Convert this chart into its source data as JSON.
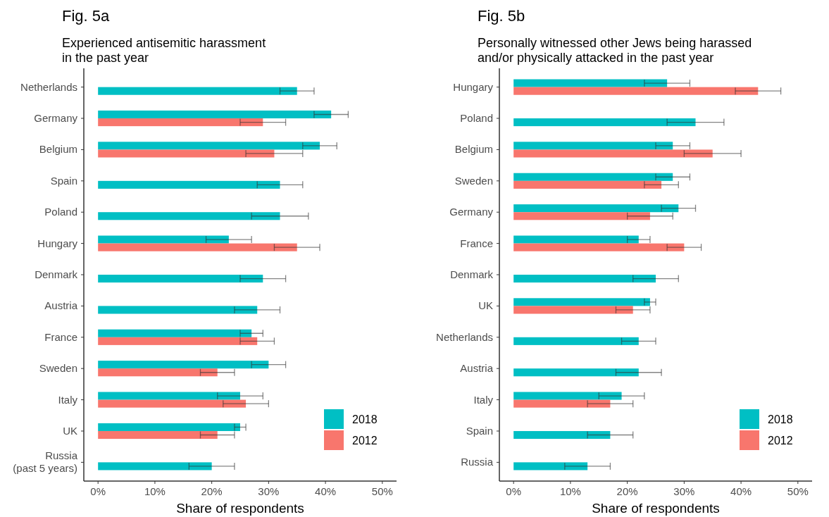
{
  "chart_data": [
    {
      "type": "bar",
      "orientation": "horizontal",
      "title": "Fig. 5a",
      "subtitle": "Experienced antisemitic harassment\nin the past year",
      "xlabel": "Share of respondents",
      "categories": [
        "Netherlands",
        "Germany",
        "Belgium",
        "Spain",
        "Poland",
        "Hungary",
        "Denmark",
        "Austria",
        "France",
        "Sweden",
        "Italy",
        "UK",
        "Russia\n(past 5 years)"
      ],
      "series": [
        {
          "name": "2018",
          "color": "#00bfc4",
          "values": [
            35,
            41,
            39,
            32,
            32,
            23,
            29,
            28,
            27,
            30,
            25,
            25,
            20
          ],
          "errors": [
            [
              32,
              38
            ],
            [
              38,
              44
            ],
            [
              36,
              42
            ],
            [
              28,
              36
            ],
            [
              27,
              37
            ],
            [
              19,
              27
            ],
            [
              25,
              33
            ],
            [
              24,
              32
            ],
            [
              25,
              29
            ],
            [
              27,
              33
            ],
            [
              21,
              29
            ],
            [
              24,
              26
            ],
            [
              16,
              24
            ]
          ]
        },
        {
          "name": "2012",
          "color": "#f8766d",
          "values": [
            null,
            29,
            31,
            null,
            null,
            35,
            null,
            null,
            28,
            21,
            26,
            21,
            null
          ],
          "errors": [
            null,
            [
              25,
              33
            ],
            [
              26,
              36
            ],
            null,
            null,
            [
              31,
              39
            ],
            null,
            null,
            [
              25,
              31
            ],
            [
              18,
              24
            ],
            [
              22,
              30
            ],
            [
              18,
              24
            ],
            null
          ]
        }
      ],
      "xlim": [
        -2.5,
        52.5
      ],
      "xticks": [
        {
          "value": 0,
          "label": "0%"
        },
        {
          "value": 10,
          "label": "10%"
        },
        {
          "value": 20,
          "label": "20%"
        },
        {
          "value": 30,
          "label": "30%"
        },
        {
          "value": 40,
          "label": "40%"
        },
        {
          "value": 50,
          "label": "50%"
        }
      ],
      "legend": "bottom right"
    },
    {
      "type": "bar",
      "orientation": "horizontal",
      "title": "Fig. 5b",
      "subtitle": "Personally witnessed other Jews being harassed\nand/or physically attacked in the past year",
      "xlabel": "Share of respondents",
      "categories": [
        "Hungary",
        "Poland",
        "Belgium",
        "Sweden",
        "Germany",
        "France",
        "Denmark",
        "UK",
        "Netherlands",
        "Austria",
        "Italy",
        "Spain",
        "Russia"
      ],
      "series": [
        {
          "name": "2018",
          "color": "#00bfc4",
          "values": [
            27,
            32,
            28,
            28,
            29,
            22,
            25,
            24,
            22,
            22,
            19,
            17,
            13
          ],
          "errors": [
            [
              23,
              31
            ],
            [
              27,
              37
            ],
            [
              25,
              31
            ],
            [
              25,
              31
            ],
            [
              26,
              32
            ],
            [
              20,
              24
            ],
            [
              21,
              29
            ],
            [
              23,
              25
            ],
            [
              19,
              25
            ],
            [
              18,
              26
            ],
            [
              15,
              23
            ],
            [
              13,
              21
            ],
            [
              9,
              17
            ]
          ]
        },
        {
          "name": "2012",
          "color": "#f8766d",
          "values": [
            43,
            null,
            35,
            26,
            24,
            30,
            null,
            21,
            null,
            null,
            17,
            null,
            null
          ],
          "errors": [
            [
              39,
              47
            ],
            null,
            [
              30,
              40
            ],
            [
              23,
              29
            ],
            [
              20,
              28
            ],
            [
              27,
              33
            ],
            null,
            [
              18,
              24
            ],
            null,
            null,
            [
              13,
              21
            ],
            null,
            null
          ]
        }
      ],
      "xlim": [
        -2.5,
        52.5
      ],
      "xticks": [
        {
          "value": 0,
          "label": "0%"
        },
        {
          "value": 10,
          "label": "10%"
        },
        {
          "value": 20,
          "label": "20%"
        },
        {
          "value": 30,
          "label": "30%"
        },
        {
          "value": 40,
          "label": "40%"
        },
        {
          "value": 50,
          "label": "50%"
        }
      ],
      "legend": "bottom right"
    }
  ]
}
